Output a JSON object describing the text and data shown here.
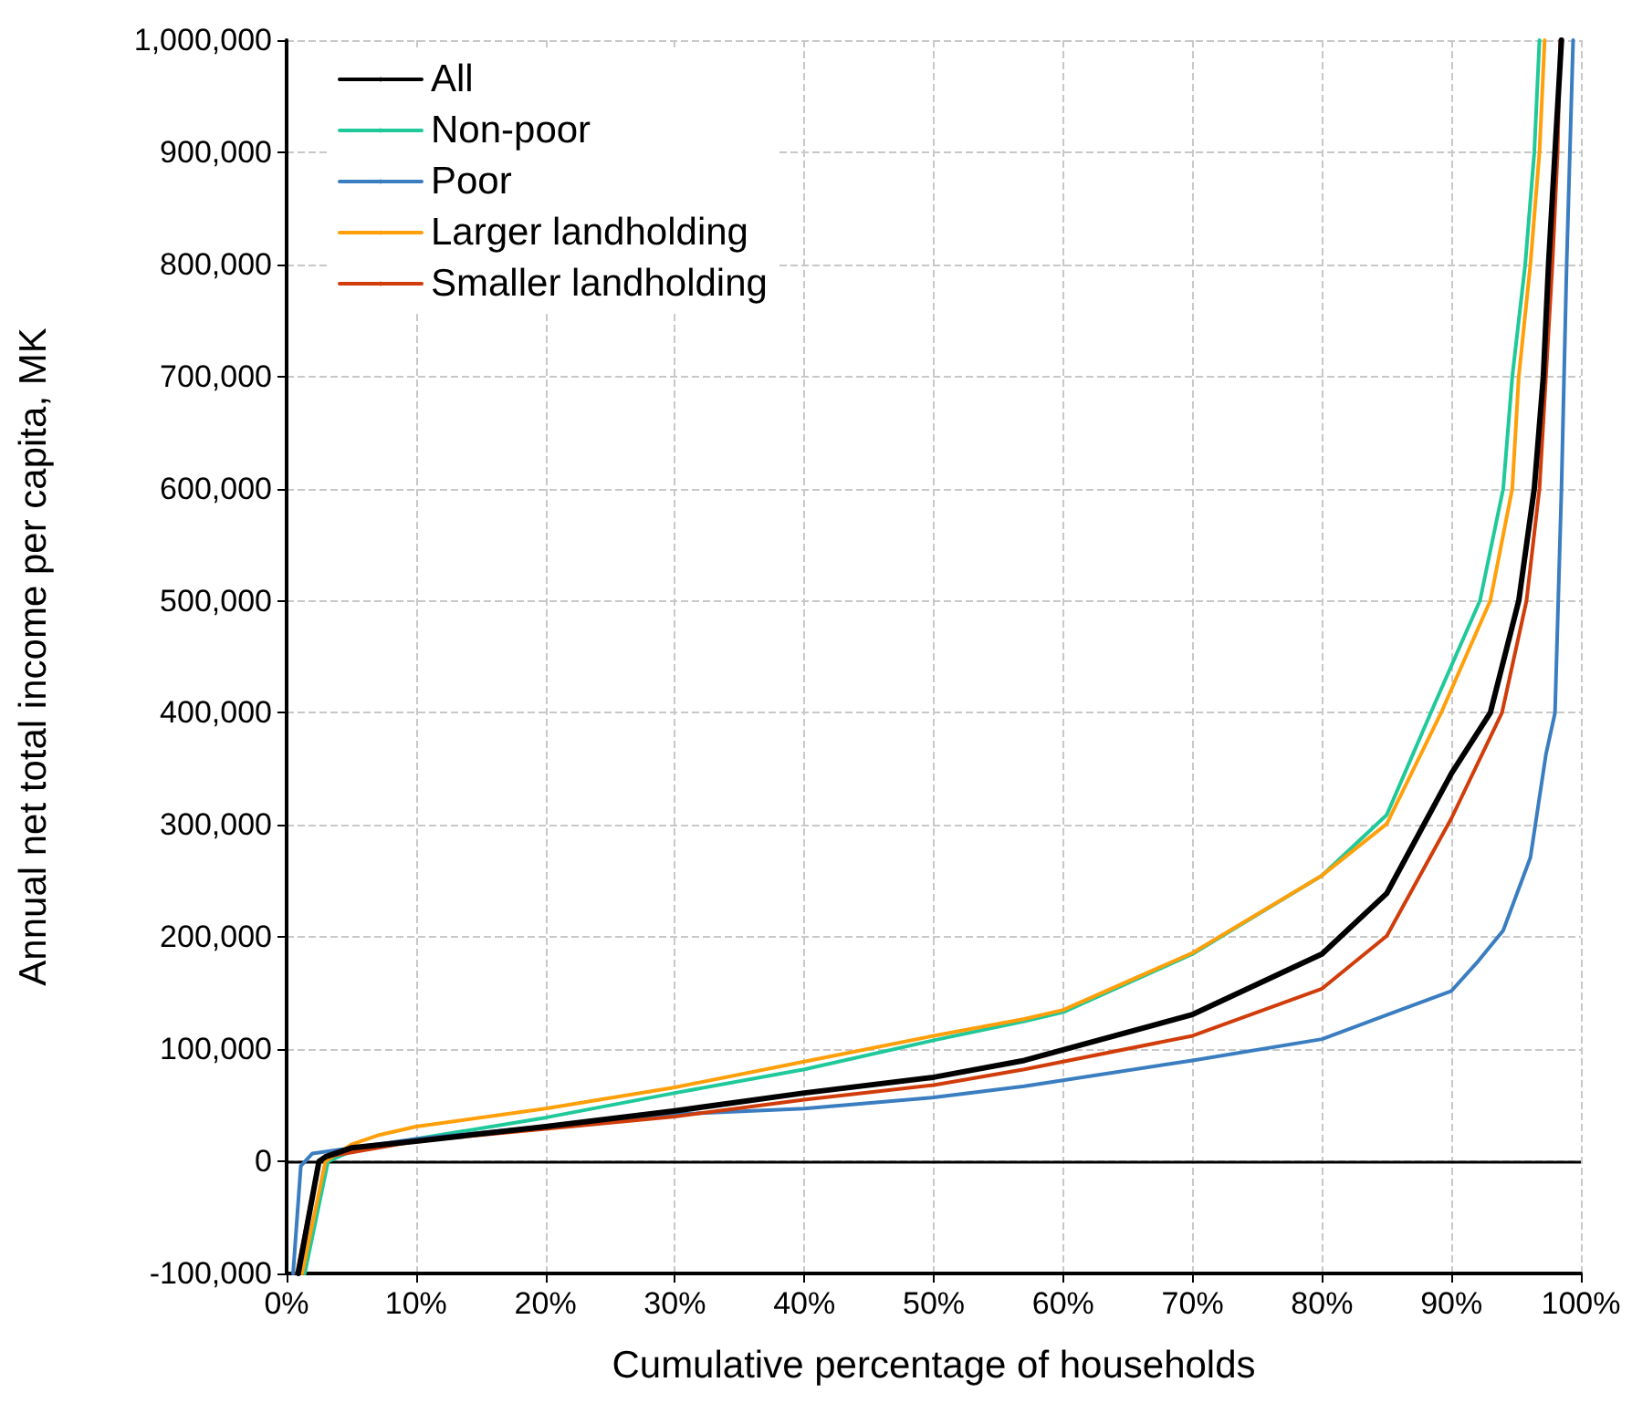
{
  "chart_data": {
    "type": "line",
    "xlabel": "Cumulative percentage of households",
    "ylabel": "Annual net total income per capita, MK",
    "xlim": [
      0,
      100
    ],
    "ylim": [
      -100000,
      1000000
    ],
    "xticks": [
      {
        "value": 0,
        "label": "0%"
      },
      {
        "value": 10,
        "label": "10%"
      },
      {
        "value": 20,
        "label": "20%"
      },
      {
        "value": 30,
        "label": "30%"
      },
      {
        "value": 40,
        "label": "40%"
      },
      {
        "value": 50,
        "label": "50%"
      },
      {
        "value": 60,
        "label": "60%"
      },
      {
        "value": 70,
        "label": "70%"
      },
      {
        "value": 80,
        "label": "80%"
      },
      {
        "value": 90,
        "label": "90%"
      },
      {
        "value": 100,
        "label": "100%"
      }
    ],
    "yticks": [
      {
        "value": -100000,
        "label": "-100,000"
      },
      0,
      {
        "value": 100000,
        "label": "100,000"
      },
      {
        "value": 200000,
        "label": "200,000"
      },
      {
        "value": 300000,
        "label": "300,000"
      },
      {
        "value": 400000,
        "label": "400,000"
      },
      {
        "value": 500000,
        "label": "500,000"
      },
      {
        "value": 600000,
        "label": "600,000"
      },
      {
        "value": 700000,
        "label": "700,000"
      },
      {
        "value": 800000,
        "label": "800,000"
      },
      {
        "value": 900000,
        "label": "900,000"
      },
      {
        "value": 1000000,
        "label": "1,000,000"
      }
    ],
    "grid": true,
    "legend": "top left",
    "marker": "none",
    "line_style": "solid",
    "ref_lines": [
      {
        "axis": "y",
        "value": 0,
        "color": "#000000"
      }
    ],
    "series": [
      {
        "name": "All",
        "color": "#000000",
        "x": [
          0.9,
          2.5,
          3,
          5,
          10,
          20,
          30,
          40,
          50,
          57,
          70,
          80,
          85,
          90,
          93,
          95.2,
          96.4,
          97.1,
          97.5,
          98,
          98.5
        ],
        "values": [
          -100000,
          0,
          4000,
          12000,
          18000,
          31000,
          45000,
          61000,
          75000,
          90000,
          131000,
          185000,
          239000,
          346000,
          400000,
          500000,
          600000,
          700000,
          800000,
          900000,
          1000000
        ]
      },
      {
        "name": "Non-poor",
        "color": "#1fc99a",
        "x": [
          1.4,
          3.2,
          5,
          10,
          20,
          30,
          40,
          50,
          57,
          60,
          70,
          80,
          85,
          88.4,
          92.2,
          94,
          94.7,
          95.7,
          96.4,
          96.8
        ],
        "values": [
          -100000,
          0,
          9000,
          20000,
          39000,
          61000,
          82000,
          108000,
          125000,
          133000,
          185000,
          255000,
          309000,
          400000,
          500000,
          600000,
          700000,
          800000,
          900000,
          1000000
        ]
      },
      {
        "name": "Poor",
        "color": "#3a7dc0",
        "x": [
          0.5,
          1.1,
          2,
          10,
          20,
          30,
          40,
          50,
          57,
          70,
          80,
          90,
          92.1,
          94,
          96.1,
          97.3,
          98,
          98.5,
          98.9,
          99.4
        ],
        "values": [
          -100000,
          -4000,
          7000,
          20000,
          31000,
          42000,
          47000,
          57000,
          67000,
          90000,
          109000,
          152000,
          179000,
          206000,
          271000,
          363000,
          400000,
          600000,
          800000,
          1000000
        ]
      },
      {
        "name": "Larger landholding",
        "color": "#ff9f0a",
        "x": [
          1.2,
          3,
          5,
          7,
          10,
          20,
          30,
          40,
          50,
          57,
          60,
          70,
          80,
          85,
          89.2,
          93,
          94.7,
          95.2,
          96.1,
          96.8,
          97.2
        ],
        "values": [
          -100000,
          0,
          15000,
          23000,
          31000,
          47000,
          66000,
          89000,
          112000,
          127000,
          135000,
          186000,
          255000,
          301000,
          400000,
          500000,
          600000,
          700000,
          800000,
          900000,
          1000000
        ]
      },
      {
        "name": "Smaller landholding",
        "color": "#d03c0a",
        "x": [
          0.8,
          2.5,
          3,
          10,
          20,
          30,
          40,
          50,
          57,
          70,
          80,
          85,
          90,
          93.9,
          95.8,
          96.8,
          97.3,
          97.8,
          98.2,
          98.4
        ],
        "values": [
          -100000,
          0,
          4000,
          18000,
          29000,
          40000,
          55000,
          68000,
          82000,
          112000,
          154000,
          201000,
          306000,
          400000,
          500000,
          600000,
          700000,
          800000,
          900000,
          1000000
        ]
      }
    ]
  }
}
